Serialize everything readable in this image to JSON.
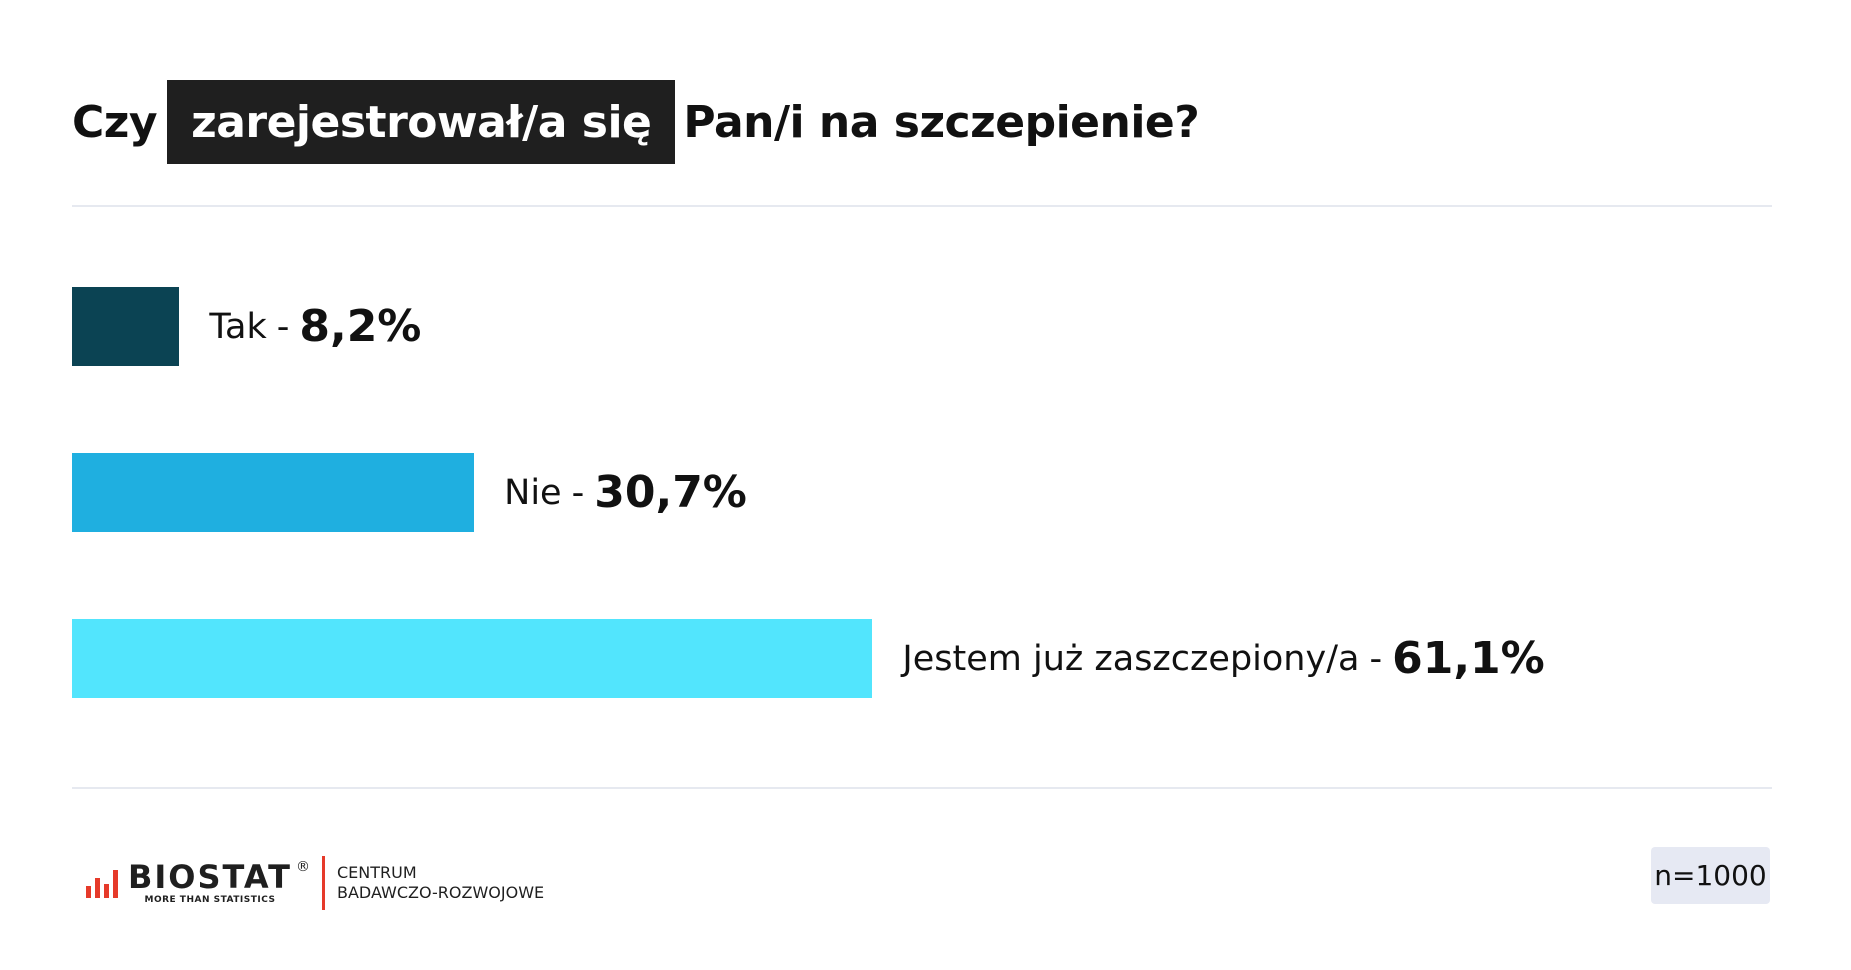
{
  "title": {
    "before": "Czy",
    "highlight": "zarejestrował/a się",
    "after": "Pan/i na szczepienie?"
  },
  "chart_data": {
    "type": "bar",
    "orientation": "horizontal",
    "categories": [
      "Tak",
      "Nie",
      "Jestem już zaszczepiony/a"
    ],
    "values": [
      8.2,
      30.7,
      61.1
    ],
    "value_labels": [
      "8,2%",
      "30,7%",
      "61,1%"
    ],
    "colors": [
      "#0b4353",
      "#1fafe0",
      "#52e5fd"
    ],
    "separator": "-",
    "title": "Czy zarejestrował/a się Pan/i na szczepienie?",
    "xlim": [
      0,
      100
    ],
    "grid": false
  },
  "footer": {
    "brand": "BIOSTAT",
    "brand_sub": "MORE THAN STATISTICS",
    "reg": "®",
    "center_line1": "CENTRUM",
    "center_line2": "BADAWCZO-ROZWOJOWE",
    "sample": "n=1000"
  },
  "colors": {
    "logo_red": "#e63a2a",
    "title_highlight_bg": "#1f1f1f",
    "badge_bg": "#e6e9f3",
    "divider": "#e6e9f0"
  }
}
